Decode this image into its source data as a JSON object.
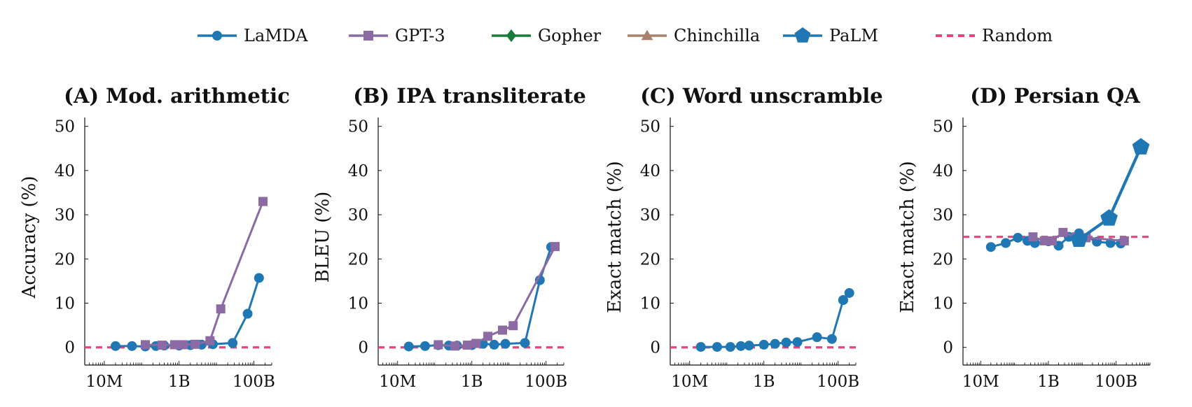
{
  "legend": {
    "items": [
      {
        "name": "LaMDA",
        "color": "#1f77b4",
        "marker": "circle",
        "dash": false
      },
      {
        "name": "GPT-3",
        "color": "#8c6aa3",
        "marker": "square",
        "dash": false
      },
      {
        "name": "Gopher",
        "color": "#1a7a3a",
        "marker": "diamond",
        "dash": false
      },
      {
        "name": "Chinchilla",
        "color": "#a9806a",
        "marker": "triangle",
        "dash": false
      },
      {
        "name": "PaLM",
        "color": "#1f77b4",
        "marker": "pentagon",
        "dash": false
      },
      {
        "name": "Random",
        "color": "#e8447a",
        "marker": "none",
        "dash": true
      }
    ]
  },
  "chart_data": [
    {
      "type": "line",
      "title": "(A) Mod. arithmetic",
      "ylabel": "Accuracy (%)",
      "xlabel": "",
      "xscale": "log",
      "xlim": [
        3000000,
        300000000000
      ],
      "ylim": [
        -4,
        52
      ],
      "yticks": [
        0,
        10,
        20,
        30,
        40,
        50
      ],
      "xticks": [
        {
          "value": 10000000,
          "label": "10M"
        },
        {
          "value": 1000000000,
          "label": "1B"
        },
        {
          "value": 100000000000,
          "label": "100B"
        }
      ],
      "random_baseline": 0,
      "series": [
        {
          "name": "LaMDA",
          "x": [
            20000000,
            55000000,
            125000000,
            240000000,
            400000000,
            1000000000,
            2000000000,
            4000000000,
            8000000000,
            27000000000,
            68000000000,
            137000000000
          ],
          "y": [
            0.3,
            0.3,
            0.2,
            0.3,
            0.4,
            0.4,
            0.5,
            0.6,
            0.7,
            1.0,
            7.6,
            15.7
          ]
        },
        {
          "name": "GPT-3",
          "x": [
            125000000,
            350000000,
            760000000,
            1300000000,
            2700000000,
            6700000000,
            13000000000,
            175000000000
          ],
          "y": [
            0.6,
            0.5,
            0.6,
            0.6,
            0.7,
            1.5,
            8.7,
            33.0
          ]
        }
      ]
    },
    {
      "type": "line",
      "title": "(B) IPA transliterate",
      "ylabel": "BLEU (%)",
      "xlabel": "",
      "xscale": "log",
      "xlim": [
        3000000,
        300000000000
      ],
      "ylim": [
        -4,
        52
      ],
      "yticks": [
        0,
        10,
        20,
        30,
        40,
        50
      ],
      "xticks": [
        {
          "value": 10000000,
          "label": "10M"
        },
        {
          "value": 1000000000,
          "label": "1B"
        },
        {
          "value": 100000000000,
          "label": "100B"
        }
      ],
      "random_baseline": 0,
      "series": [
        {
          "name": "LaMDA",
          "x": [
            20000000,
            55000000,
            125000000,
            240000000,
            400000000,
            1000000000,
            2000000000,
            4000000000,
            8000000000,
            27000000000,
            68000000000,
            137000000000
          ],
          "y": [
            0.2,
            0.3,
            0.5,
            0.4,
            0.4,
            0.5,
            0.8,
            0.6,
            0.8,
            1.0,
            15.2,
            22.7
          ]
        },
        {
          "name": "GPT-3",
          "x": [
            125000000,
            350000000,
            760000000,
            1300000000,
            2700000000,
            6700000000,
            13000000000,
            175000000000
          ],
          "y": [
            0.6,
            0.3,
            0.5,
            0.9,
            2.5,
            3.9,
            4.9,
            22.8
          ]
        }
      ]
    },
    {
      "type": "line",
      "title": "(C) Word unscramble",
      "ylabel": "Exact match (%)",
      "xlabel": "",
      "xscale": "log",
      "xlim": [
        3000000,
        300000000000
      ],
      "ylim": [
        -4,
        52
      ],
      "yticks": [
        0,
        10,
        20,
        30,
        40,
        50
      ],
      "xticks": [
        {
          "value": 10000000,
          "label": "10M"
        },
        {
          "value": 1000000000,
          "label": "1B"
        },
        {
          "value": 100000000000,
          "label": "100B"
        }
      ],
      "random_baseline": 0,
      "series": [
        {
          "name": "LaMDA",
          "x": [
            20000000,
            55000000,
            125000000,
            240000000,
            400000000,
            1000000000,
            2000000000,
            4000000000,
            8000000000,
            27000000000,
            68000000000,
            137000000000
          ],
          "y": [
            0.1,
            0.1,
            0.1,
            0.3,
            0.4,
            0.6,
            0.8,
            1.1,
            1.2,
            2.3,
            1.9,
            10.7
          ]
        },
        {
          "name": "LaMDA",
          "x": [
            137000000000,
            200000000000
          ],
          "y": [
            10.7,
            12.3
          ]
        }
      ]
    },
    {
      "type": "line",
      "title": "(D) Persian QA",
      "ylabel": "Exact match (%)",
      "xlabel": "",
      "xscale": "log",
      "xlim": [
        3000000,
        1000000000000
      ],
      "ylim": [
        -4,
        52
      ],
      "yticks": [
        0,
        10,
        20,
        30,
        40,
        50
      ],
      "xticks": [
        {
          "value": 10000000,
          "label": "10M"
        },
        {
          "value": 1000000000,
          "label": "1B"
        },
        {
          "value": 100000000000,
          "label": "100B"
        }
      ],
      "random_baseline": 25,
      "series": [
        {
          "name": "LaMDA",
          "x": [
            20000000,
            55000000,
            125000000,
            240000000,
            400000000,
            1000000000,
            2000000000,
            4000000000,
            8000000000,
            27000000000,
            68000000000,
            137000000000
          ],
          "y": [
            22.7,
            23.6,
            24.8,
            24.1,
            23.6,
            24.0,
            23.0,
            25.0,
            25.8,
            23.9,
            23.6,
            23.5
          ]
        },
        {
          "name": "GPT-3",
          "x": [
            350000000,
            760000000,
            1300000000,
            2700000000,
            6700000000,
            13000000000,
            175000000000
          ],
          "y": [
            25.0,
            24.1,
            24.1,
            26.0,
            25.0,
            24.8,
            24.1
          ]
        },
        {
          "name": "PaLM",
          "x": [
            8000000000,
            62000000000,
            540000000000
          ],
          "y": [
            24.4,
            29.2,
            45.3
          ]
        }
      ]
    }
  ]
}
